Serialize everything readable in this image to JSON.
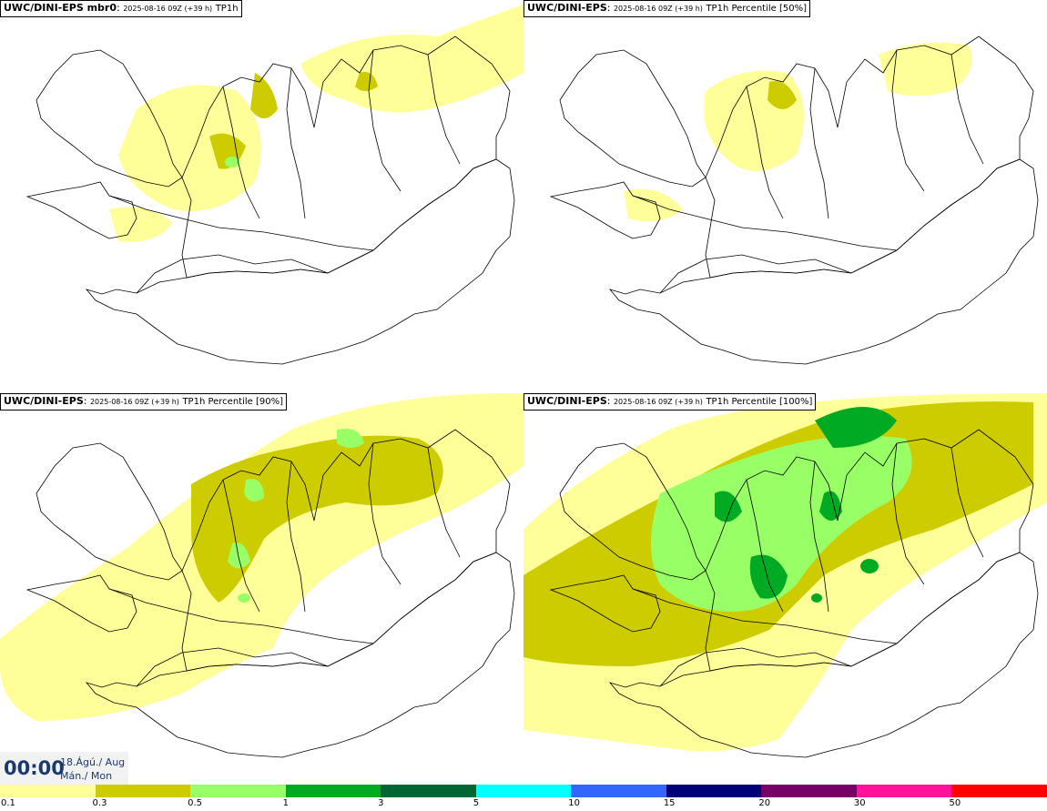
{
  "panels": [
    {
      "model": "UWC/DINI-EPS mbr0",
      "meta": "2025-08-16 09Z (+39 h)",
      "param": "TP1h"
    },
    {
      "model": "UWC/DINI-EPS",
      "meta": "2025-08-16 09Z (+39 h)",
      "param": "TP1h Percentile [50%]"
    },
    {
      "model": "UWC/DINI-EPS",
      "meta": "2025-08-16 09Z (+39 h)",
      "param": "TP1h Percentile [90%]"
    },
    {
      "model": "UWC/DINI-EPS",
      "meta": "2025-08-16 09Z (+39 h)",
      "param": "TP1h Percentile [100%]"
    }
  ],
  "valid_time": {
    "clock": "00:00",
    "date_line1": "18.Ágú./ Aug",
    "date_line2": "Mán./ Mon"
  },
  "legend": {
    "colors": [
      "#ffff99",
      "#cccc00",
      "#99ff66",
      "#00aa22",
      "#006633",
      "#00ffff",
      "#3366ff",
      "#000077",
      "#770066",
      "#ff1199",
      "#ff0000"
    ],
    "labels": [
      "0.1",
      "0.3",
      "0.5",
      "1",
      "3",
      "5",
      "10",
      "15",
      "20",
      "30",
      "50"
    ]
  }
}
